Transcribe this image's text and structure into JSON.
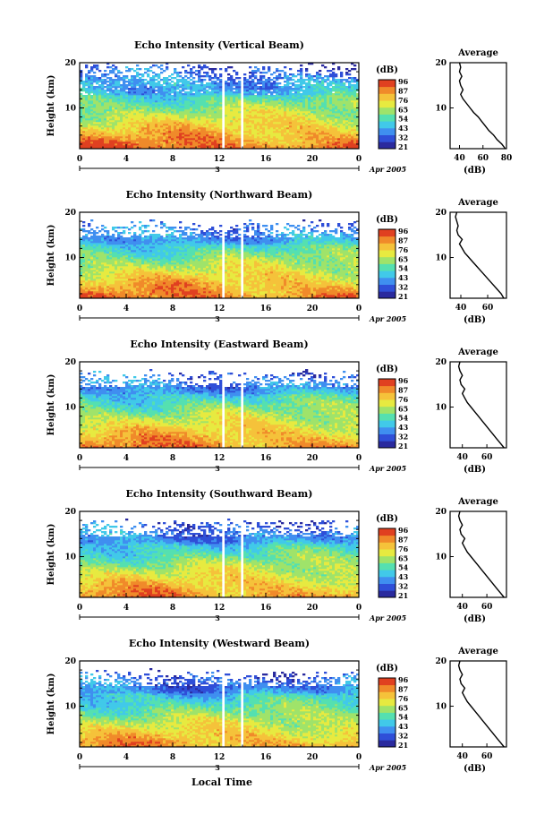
{
  "figure": {
    "xlabel": "Local Time",
    "date_label": "Apr 2005",
    "day_marker": "3",
    "colorbar_unit": "(dB)",
    "colorbar_ticks": [
      "96",
      "87",
      "76",
      "65",
      "54",
      "43",
      "32",
      "21"
    ],
    "average_title": "Average",
    "average_xlabel": "(dB)",
    "ylabel": "Height (km)"
  },
  "colorscale": [
    "#2a2a9e",
    "#2f4fd8",
    "#3f8ff0",
    "#41c9e9",
    "#55e0b0",
    "#9fe36a",
    "#e7ea40",
    "#f5c23a",
    "#f08a2a",
    "#e04020"
  ],
  "chart_data": [
    {
      "type": "heatmap",
      "title": "Echo Intensity (Vertical Beam)",
      "ylabel": "Height (km)",
      "xticks": [
        "0",
        "4",
        "8",
        "12",
        "16",
        "20",
        "0"
      ],
      "yticks": [
        "20",
        "10"
      ],
      "xlim_hours": [
        0,
        24
      ],
      "ylim_km": [
        1,
        20
      ],
      "clim_db": [
        21,
        96
      ],
      "profile": {
        "title": "Average",
        "xlabel": "(dB)",
        "xticks": [
          "40",
          "60",
          "80"
        ],
        "xlim": [
          32,
          80
        ],
        "height_km": [
          1,
          2,
          3,
          4,
          5,
          6,
          7,
          8,
          9,
          10,
          11,
          12,
          13,
          14,
          15,
          16,
          17,
          18,
          19,
          20
        ],
        "db": [
          79,
          76,
          72,
          69,
          65,
          62,
          59,
          56,
          52,
          49,
          46,
          43,
          41,
          43,
          41,
          40,
          42,
          40,
          41,
          40
        ]
      }
    },
    {
      "type": "heatmap",
      "title": "Echo Intensity (Northward Beam)",
      "ylabel": "Height (km)",
      "xticks": [
        "0",
        "4",
        "8",
        "12",
        "16",
        "20",
        "0"
      ],
      "yticks": [
        "20",
        "10"
      ],
      "xlim_hours": [
        0,
        24
      ],
      "ylim_km": [
        1,
        20
      ],
      "clim_db": [
        21,
        96
      ],
      "profile": {
        "title": "Average",
        "xlabel": "(dB)",
        "xticks": [
          "40",
          "60"
        ],
        "xlim": [
          32,
          74
        ],
        "height_km": [
          1,
          2,
          3,
          4,
          5,
          6,
          7,
          8,
          9,
          10,
          11,
          12,
          13,
          14,
          15,
          16,
          17,
          18,
          19,
          20
        ],
        "db": [
          72,
          70,
          67,
          64,
          61,
          58,
          55,
          52,
          49,
          46,
          43,
          41,
          39,
          41,
          38,
          37,
          38,
          37,
          36,
          37
        ]
      }
    },
    {
      "type": "heatmap",
      "title": "Echo Intensity (Eastward Beam)",
      "ylabel": "Height (km)",
      "xticks": [
        "0",
        "4",
        "8",
        "12",
        "16",
        "20",
        "0"
      ],
      "yticks": [
        "20",
        "10"
      ],
      "xlim_hours": [
        0,
        24
      ],
      "ylim_km": [
        1,
        20
      ],
      "clim_db": [
        21,
        96
      ],
      "profile": {
        "title": "Average",
        "xlabel": "(dB)",
        "xticks": [
          "40",
          "60"
        ],
        "xlim": [
          30,
          76
        ],
        "height_km": [
          1,
          2,
          3,
          4,
          5,
          6,
          7,
          8,
          9,
          10,
          11,
          12,
          13,
          14,
          15,
          16,
          17,
          18,
          19,
          20
        ],
        "db": [
          74,
          71,
          68,
          65,
          62,
          59,
          56,
          53,
          50,
          47,
          44,
          42,
          40,
          42,
          39,
          38,
          40,
          38,
          37,
          38
        ]
      }
    },
    {
      "type": "heatmap",
      "title": "Echo Intensity (Southward Beam)",
      "ylabel": "Height (km)",
      "xticks": [
        "0",
        "4",
        "8",
        "12",
        "16",
        "20",
        "0"
      ],
      "yticks": [
        "20",
        "10"
      ],
      "xlim_hours": [
        0,
        24
      ],
      "ylim_km": [
        1,
        20
      ],
      "clim_db": [
        21,
        96
      ],
      "profile": {
        "title": "Average",
        "xlabel": "(dB)",
        "xticks": [
          "40",
          "60"
        ],
        "xlim": [
          30,
          76
        ],
        "height_km": [
          1,
          2,
          3,
          4,
          5,
          6,
          7,
          8,
          9,
          10,
          11,
          12,
          13,
          14,
          15,
          16,
          17,
          18,
          19,
          20
        ],
        "db": [
          74,
          71,
          68,
          65,
          62,
          59,
          56,
          53,
          50,
          47,
          44,
          42,
          40,
          42,
          39,
          38,
          40,
          38,
          37,
          38
        ]
      }
    },
    {
      "type": "heatmap",
      "title": "Echo Intensity (Westward Beam)",
      "ylabel": "Height (km)",
      "xticks": [
        "0",
        "4",
        "8",
        "12",
        "16",
        "20",
        "0"
      ],
      "yticks": [
        "20",
        "10"
      ],
      "xlim_hours": [
        0,
        24
      ],
      "ylim_km": [
        1,
        20
      ],
      "clim_db": [
        21,
        96
      ],
      "profile": {
        "title": "Average",
        "xlabel": "(dB)",
        "xticks": [
          "40",
          "60"
        ],
        "xlim": [
          30,
          76
        ],
        "height_km": [
          1,
          2,
          3,
          4,
          5,
          6,
          7,
          8,
          9,
          10,
          11,
          12,
          13,
          14,
          15,
          16,
          17,
          18,
          19,
          20
        ],
        "db": [
          74,
          71,
          68,
          65,
          62,
          59,
          56,
          53,
          50,
          47,
          44,
          42,
          40,
          42,
          39,
          38,
          40,
          38,
          37,
          38
        ]
      }
    }
  ]
}
